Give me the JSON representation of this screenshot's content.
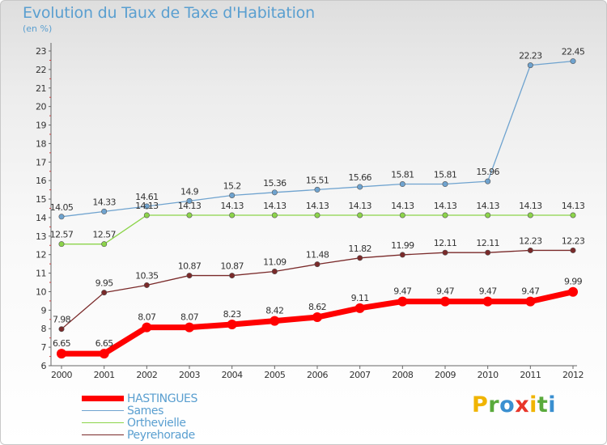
{
  "header": {
    "title": "Evolution du Taux de Taxe d'Habitation",
    "subtitle": "(en %)"
  },
  "logo": {
    "text": "Proxiti",
    "letters": [
      {
        "ch": "P",
        "color": "#f0b400"
      },
      {
        "ch": "r",
        "color": "#5aaa3c"
      },
      {
        "ch": "o",
        "color": "#3a8fd0"
      },
      {
        "ch": "x",
        "color": "#e8362a"
      },
      {
        "ch": "i",
        "color": "#f0b400"
      },
      {
        "ch": "t",
        "color": "#5aaa3c"
      },
      {
        "ch": "i",
        "color": "#3a8fd0"
      }
    ]
  },
  "chart_data": {
    "type": "line",
    "title": "Evolution du Taux de Taxe d'Habitation",
    "subtitle": "(en %)",
    "xlabel": "",
    "ylabel": "",
    "x": [
      2000,
      2001,
      2002,
      2003,
      2004,
      2005,
      2006,
      2007,
      2008,
      2009,
      2010,
      2011,
      2012
    ],
    "ylim": [
      6,
      23
    ],
    "yticks": [
      6,
      7,
      8,
      9,
      10,
      11,
      12,
      13,
      14,
      15,
      16,
      17,
      18,
      19,
      20,
      21,
      22,
      23
    ],
    "grid": false,
    "legend_position": "bottom-left",
    "series": [
      {
        "name": "HASTINGUES",
        "color": "#ff0000",
        "values": [
          6.65,
          6.65,
          8.07,
          8.07,
          8.23,
          8.42,
          8.62,
          9.11,
          9.47,
          9.47,
          9.47,
          9.47,
          9.99
        ],
        "labels": [
          "6.65",
          "6.65",
          "8.07",
          "8.07",
          "8.23",
          "8.42",
          "8.62",
          "9.11",
          "9.47",
          "9.47",
          "9.47",
          "9.47",
          "9.99"
        ]
      },
      {
        "name": "Sames",
        "color": "#6fa3cf",
        "values": [
          14.05,
          14.33,
          14.61,
          14.9,
          15.2,
          15.36,
          15.51,
          15.66,
          15.81,
          15.81,
          15.96,
          22.23,
          22.45
        ],
        "labels": [
          "14.05",
          "14.33",
          "14.61",
          "14.9",
          "15.2",
          "15.36",
          "15.51",
          "15.66",
          "15.81",
          "15.81",
          "15.96",
          "22.23",
          "22.45"
        ]
      },
      {
        "name": "Orthevielle",
        "color": "#8cd44a",
        "values": [
          12.57,
          12.57,
          14.13,
          14.13,
          14.13,
          14.13,
          14.13,
          14.13,
          14.13,
          14.13,
          14.13,
          14.13,
          14.13
        ],
        "labels": [
          "12.57",
          "12.57",
          "14.13",
          "14.13",
          "14.13",
          "14.13",
          "14.13",
          "14.13",
          "14.13",
          "14.13",
          "14.13",
          "14.13",
          "14.13"
        ]
      },
      {
        "name": "Peyrehorade",
        "color": "#7a2a2a",
        "values": [
          7.98,
          9.95,
          10.35,
          10.87,
          10.87,
          11.09,
          11.48,
          11.82,
          11.99,
          12.11,
          12.11,
          12.23,
          12.23
        ],
        "labels": [
          "7.98",
          "9.95",
          "10.35",
          "10.87",
          "10.87",
          "11.09",
          "11.48",
          "11.82",
          "11.99",
          "12.11",
          "12.11",
          "12.23",
          "12.23"
        ]
      }
    ]
  }
}
